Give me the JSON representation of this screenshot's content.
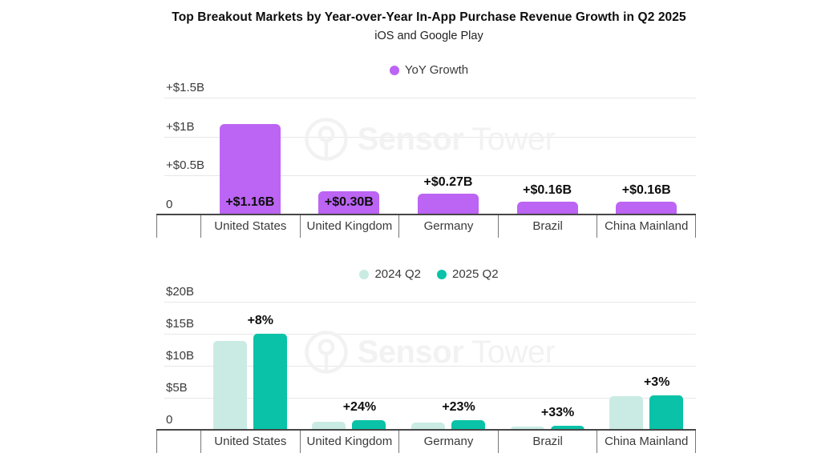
{
  "header": {
    "title": "Top Breakout Markets by Year-over-Year In-App Purchase Revenue Growth in Q2 2025",
    "subtitle": "iOS and Google Play"
  },
  "watermark": {
    "brand_bold": "Sensor",
    "brand_light": "Tower"
  },
  "colors": {
    "purple": "#bc64f3",
    "teal": "#09c2a7",
    "teal_light": "#c9ebe4",
    "grid": "#e7e7e7",
    "axis": "#474747",
    "divider": "#777777",
    "tick_text": "#3a3a3a",
    "data_label": "#0d0d0d",
    "watermark": "#f2f2f2"
  },
  "chart_data": [
    {
      "type": "bar",
      "title": "YoY Growth in In-App Purchase Revenue, Q2 2025 (iOS and Google Play)",
      "legend": [
        {
          "label": "YoY Growth",
          "color": "purple"
        }
      ],
      "categories": [
        "United States",
        "United Kingdom",
        "Germany",
        "Brazil",
        "China Mainland"
      ],
      "values": [
        1.16,
        0.3,
        0.27,
        0.16,
        0.16
      ],
      "bar_labels": [
        "+$1.16B",
        "+$0.30B",
        "+$0.27B",
        "+$0.16B",
        "+$0.16B"
      ],
      "unit": "USD billions (YoY growth)",
      "ylim": [
        0,
        1.5
      ],
      "yticks": [
        {
          "v": 0,
          "label": "0"
        },
        {
          "v": 0.5,
          "label": "+$0.5B"
        },
        {
          "v": 1,
          "label": "+$1B"
        },
        {
          "v": 1.5,
          "label": "+$1.5B"
        }
      ],
      "grid": true,
      "legend_position": "top-center"
    },
    {
      "type": "grouped_bar",
      "title": "Quarterly In-App Purchase Revenue, Q2 2024 vs Q2 2025 (iOS and Google Play)",
      "legend": [
        {
          "label": "2024 Q2",
          "color": "teal_light"
        },
        {
          "label": "2025 Q2",
          "color": "teal"
        }
      ],
      "categories": [
        "United States",
        "United Kingdom",
        "Germany",
        "Brazil",
        "China Mainland"
      ],
      "series": [
        {
          "name": "2024 Q2",
          "color": "teal_light",
          "values": [
            13.9,
            1.25,
            1.17,
            0.48,
            5.2
          ]
        },
        {
          "name": "2025 Q2",
          "color": "teal",
          "values": [
            15.06,
            1.55,
            1.44,
            0.64,
            5.36
          ]
        }
      ],
      "growth_labels": [
        "+8%",
        "+24%",
        "+23%",
        "+33%",
        "+3%"
      ],
      "unit": "USD billions (quarterly revenue)",
      "ylim": [
        0,
        20
      ],
      "yticks": [
        {
          "v": 0,
          "label": "0"
        },
        {
          "v": 5,
          "label": "$5B"
        },
        {
          "v": 10,
          "label": "$10B"
        },
        {
          "v": 15,
          "label": "$15B"
        },
        {
          "v": 20,
          "label": "$20B"
        }
      ],
      "grid": true,
      "legend_position": "top-center"
    }
  ]
}
